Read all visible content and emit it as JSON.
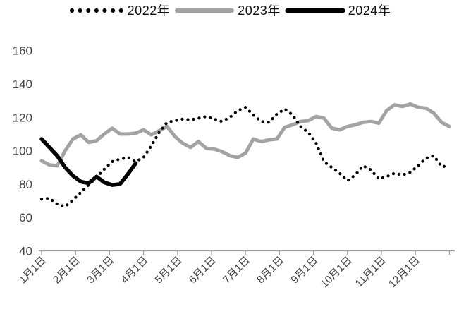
{
  "chart_data": {
    "type": "line",
    "title": "",
    "xlabel": "",
    "ylabel": "",
    "ylim": [
      40,
      160
    ],
    "y_ticks": [
      40,
      60,
      80,
      100,
      120,
      140,
      160
    ],
    "x_tick_labels": [
      "1月1日",
      "2月1日",
      "3月1日",
      "4月1日",
      "5月1日",
      "6月1日",
      "7月1日",
      "8月1日",
      "9月1日",
      "10月1日",
      "11月1日",
      "12月1日"
    ],
    "grid": false,
    "legend_position": "top",
    "axis_color": "#a0a0a0",
    "label_color": "#404040",
    "weeks_per_year": 52,
    "series": [
      {
        "name": "2022年",
        "style": "dotted",
        "color": "#000000",
        "week_start": 0,
        "values": [
          71,
          71.5,
          68,
          66.5,
          70.5,
          75,
          79.5,
          84,
          89,
          93.5,
          95,
          96,
          93.5,
          96,
          103,
          111,
          117,
          118,
          119,
          118.5,
          119.5,
          120.5,
          119,
          117.5,
          120,
          124,
          126,
          121.5,
          117.5,
          117,
          122,
          125,
          121.5,
          114.5,
          111,
          104.5,
          93.5,
          90,
          86.5,
          82,
          85.5,
          91,
          88.5,
          83,
          84.5,
          86.5,
          85.5,
          87,
          91,
          95.5,
          97,
          90.5,
          91
        ]
      },
      {
        "name": "2023年",
        "style": "solid",
        "color": "#a3a3a3",
        "week_start": 0,
        "values": [
          94,
          91.5,
          91,
          100,
          107,
          109.5,
          105,
          106,
          110,
          113.5,
          110,
          110,
          110.5,
          112.5,
          109.5,
          112,
          114.5,
          108.5,
          104.5,
          102,
          105.5,
          101.5,
          101,
          99.5,
          97,
          96,
          98.5,
          107,
          105.5,
          106.5,
          107,
          114,
          115.5,
          117.5,
          118,
          120.5,
          119.5,
          113.5,
          112.5,
          114.5,
          115.5,
          117,
          117.5,
          116.5,
          124,
          127.5,
          126.5,
          128,
          126,
          125.5,
          122.5,
          117,
          114.5
        ]
      },
      {
        "name": "2024年",
        "style": "solid-thick",
        "color": "#000000",
        "week_start": 0,
        "values": [
          107,
          102,
          97,
          90,
          85,
          81.5,
          80.5,
          84.5,
          81,
          79.5,
          80,
          86,
          92.5
        ]
      }
    ]
  }
}
